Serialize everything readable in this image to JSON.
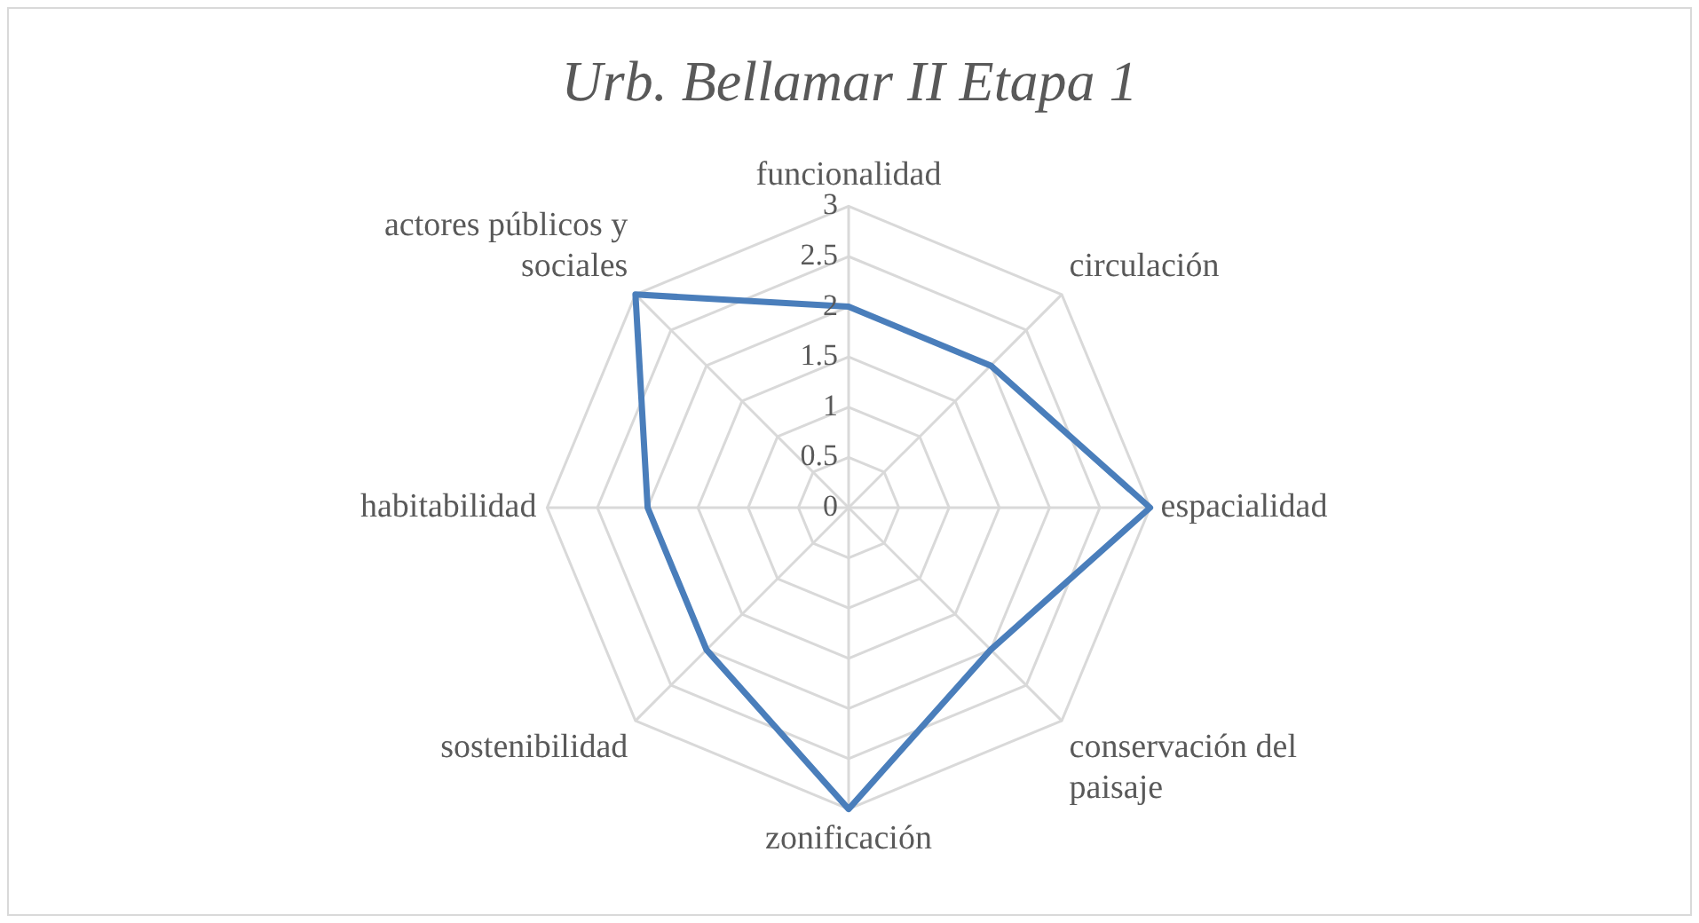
{
  "chart_data": {
    "type": "radar",
    "title": "Urb. Bellamar II Etapa 1",
    "categories": [
      "funcionalidad",
      "circulación",
      "espacialidad",
      "conservación del paisaje",
      "zonificación",
      "sostenibilidad",
      "habitabilidad",
      "actores públicos y sociales"
    ],
    "series": [
      {
        "color": "#4a7ebb",
        "values": [
          2,
          2,
          3,
          2,
          3,
          2,
          2,
          3
        ]
      }
    ],
    "ylim": [
      0,
      3
    ],
    "yticks": [
      0,
      0.5,
      1,
      1.5,
      2,
      2.5,
      3
    ],
    "grid": true,
    "marker": "none"
  }
}
